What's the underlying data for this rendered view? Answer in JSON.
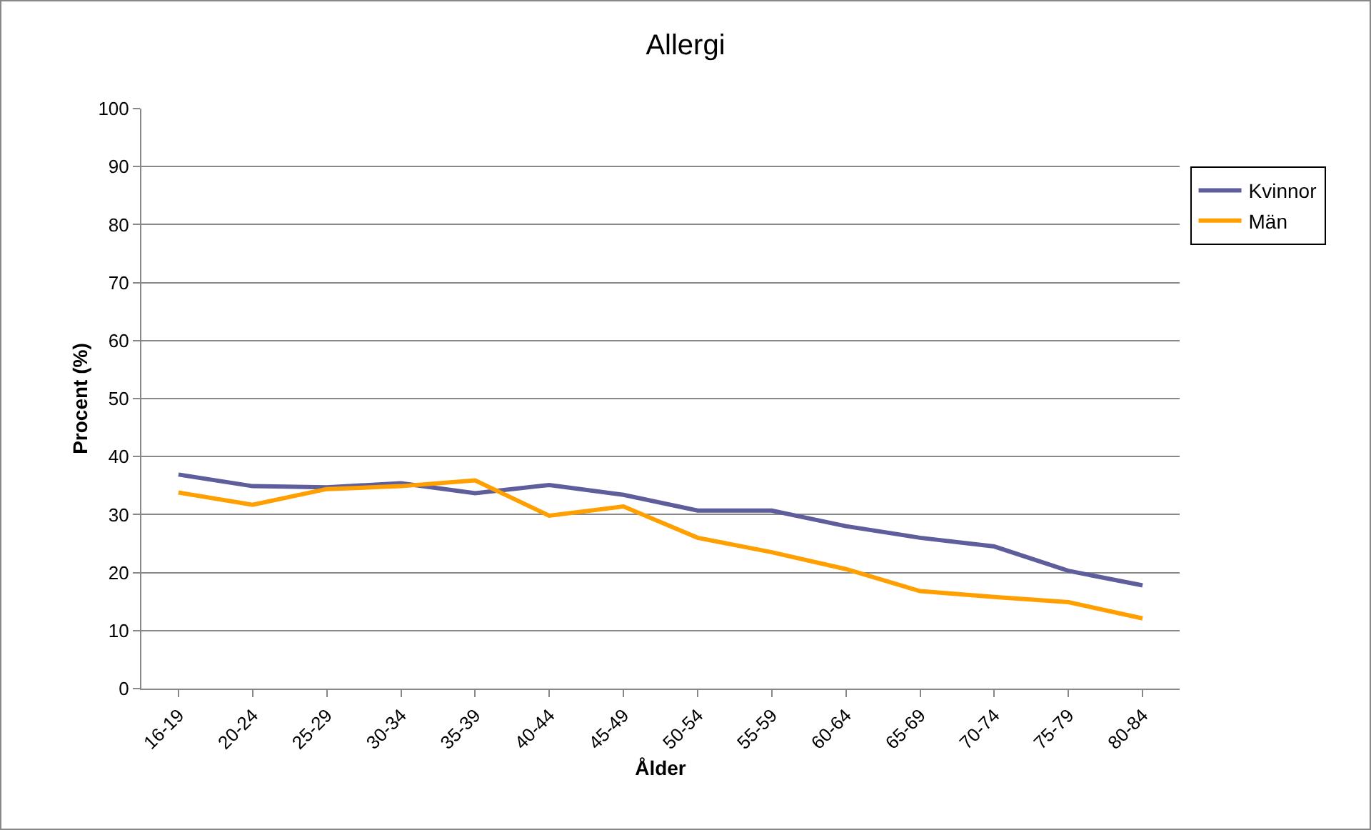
{
  "chart_data": {
    "type": "line",
    "title": "Allergi",
    "xlabel": "Ålder",
    "ylabel": "Procent (%)",
    "categories": [
      "16-19",
      "20-24",
      "25-29",
      "30-34",
      "35-39",
      "40-44",
      "45-49",
      "50-54",
      "55-59",
      "60-64",
      "65-69",
      "70-74",
      "75-79",
      "80-84"
    ],
    "series": [
      {
        "name": "Kvinnor",
        "color": "#5e5e9c",
        "values": [
          36.9,
          34.9,
          34.7,
          35.4,
          33.7,
          35.1,
          33.4,
          30.7,
          30.7,
          28.0,
          26.0,
          24.5,
          20.3,
          17.8
        ]
      },
      {
        "name": "Män",
        "color": "#ff9f00",
        "values": [
          33.8,
          31.7,
          34.4,
          34.9,
          35.9,
          29.8,
          31.4,
          26.0,
          23.5,
          20.6,
          16.8,
          15.8,
          14.9,
          12.1
        ]
      }
    ],
    "ylim": [
      0,
      100
    ],
    "yticks": [
      0,
      10,
      20,
      30,
      40,
      50,
      60,
      70,
      80,
      90,
      100
    ],
    "grid": "y",
    "legend": "top right",
    "marker": "none",
    "line_style": "solid"
  }
}
